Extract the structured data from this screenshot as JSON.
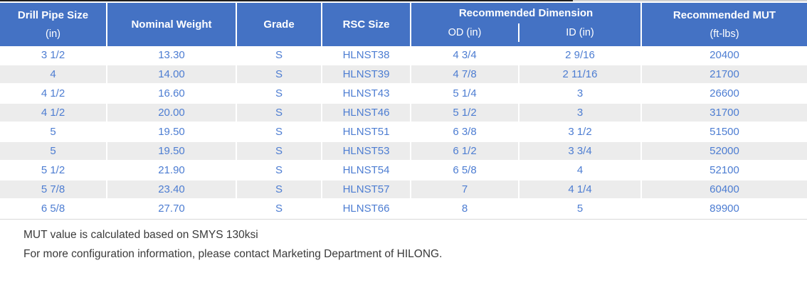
{
  "colors": {
    "header_bg": "#4472C4",
    "cell_text": "#4D7DD2",
    "row_alt_bg": "#ECECEC"
  },
  "table": {
    "headers": {
      "drill_pipe_size_line1": "Drill Pipe Size",
      "drill_pipe_size_line2": "(in)",
      "nominal_weight": "Nominal Weight",
      "grade": "Grade",
      "rsc_size": "RSC Size",
      "recommended_dimension": "Recommended Dimension",
      "od": "OD (in)",
      "id": "ID (in)",
      "recommended_mut_line1": "Recommended MUT",
      "recommended_mut_line2": "(ft-lbs)"
    },
    "rows": [
      [
        "3 1/2",
        "13.30",
        "S",
        "HLNST38",
        "4 3/4",
        "2 9/16",
        "20400"
      ],
      [
        "4",
        "14.00",
        "S",
        "HLNST39",
        "4 7/8",
        "2 11/16",
        "21700"
      ],
      [
        "4 1/2",
        "16.60",
        "S",
        "HLNST43",
        "5 1/4",
        "3",
        "26600"
      ],
      [
        "4 1/2",
        "20.00",
        "S",
        "HLNST46",
        "5 1/2",
        "3",
        "31700"
      ],
      [
        "5",
        "19.50",
        "S",
        "HLNST51",
        "6 3/8",
        "3 1/2",
        "51500"
      ],
      [
        "5",
        "19.50",
        "S",
        "HLNST53",
        "6 1/2",
        "3 3/4",
        "52000"
      ],
      [
        "5 1/2",
        "21.90",
        "S",
        "HLNST54",
        "6 5/8",
        "4",
        "52100"
      ],
      [
        "5 7/8",
        "23.40",
        "S",
        "HLNST57",
        "7",
        "4 1/4",
        "60400"
      ],
      [
        "6 5/8",
        "27.70",
        "S",
        "HLNST66",
        "8",
        "5",
        "89900"
      ]
    ]
  },
  "notes": {
    "line1": "MUT value is calculated based on SMYS 130ksi",
    "line2": "For more configuration information, please contact Marketing Department of HILONG."
  }
}
